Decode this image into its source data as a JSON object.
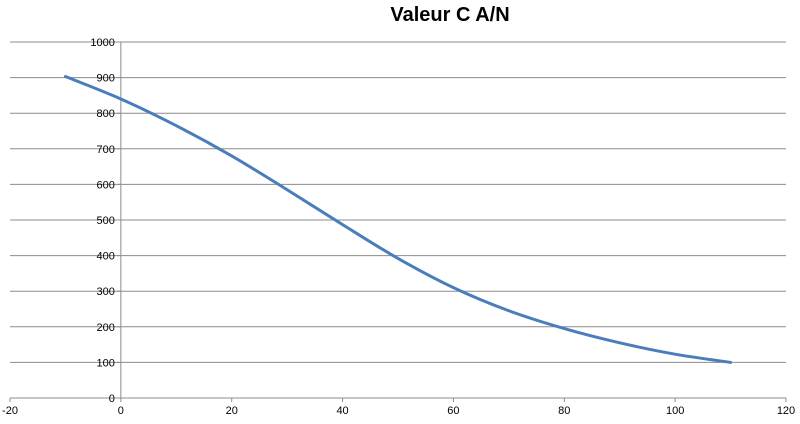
{
  "chart_data": {
    "type": "scatter",
    "title": "Valeur C A/N",
    "xlabel": "",
    "ylabel": "",
    "xlim": [
      -20,
      120
    ],
    "ylim": [
      0,
      1000
    ],
    "x_ticks": [
      -20,
      0,
      20,
      40,
      60,
      80,
      100,
      120
    ],
    "y_ticks": [
      0,
      100,
      200,
      300,
      400,
      500,
      600,
      700,
      800,
      900,
      1000
    ],
    "grid": "horizontal",
    "legend": "none",
    "series": [
      {
        "color": "#4a7ebb",
        "smooth": true,
        "x": [
          -10,
          0,
          10,
          20,
          30,
          40,
          50,
          60,
          70,
          80,
          90,
          100,
          110
        ],
        "y": [
          903,
          840,
          765,
          680,
          585,
          487,
          392,
          310,
          245,
          195,
          155,
          123,
          100
        ]
      }
    ]
  }
}
